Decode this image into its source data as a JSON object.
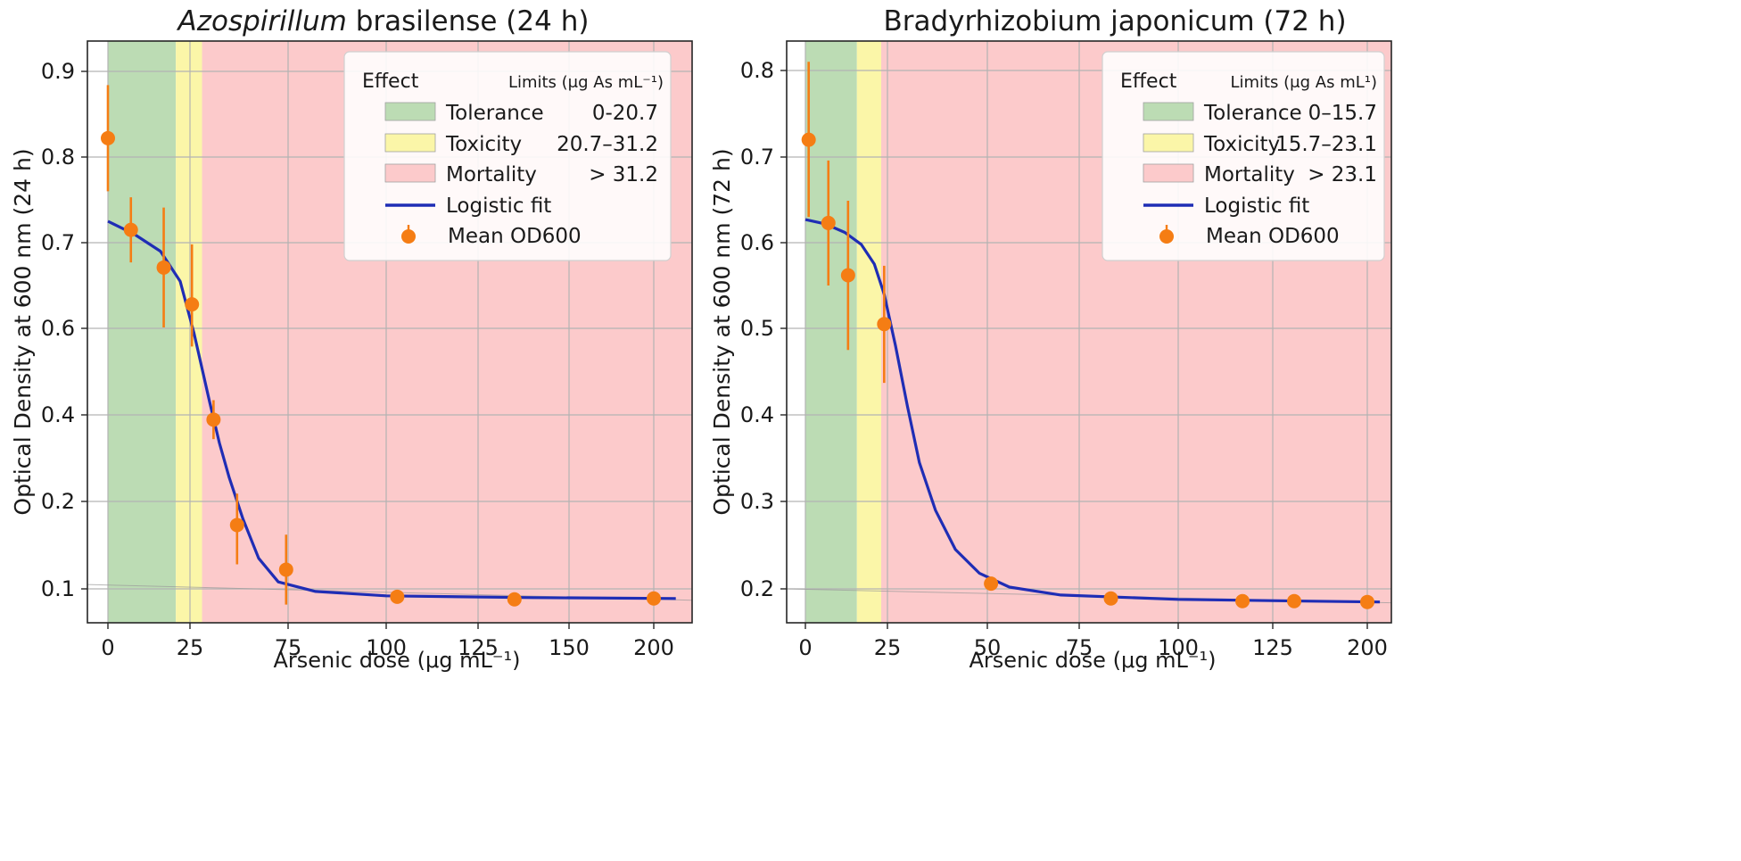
{
  "chart_data": [
    {
      "type": "line",
      "title_parts": {
        "italic": "Azospirillum",
        "rest": " brasilense (24 h)"
      },
      "ylabel": "Optical Density at 600 nm (24 h)",
      "xlabel": "Arsenic dose (μg mL⁻¹)",
      "x_ticks": [
        0,
        25,
        75,
        100,
        125,
        150,
        200
      ],
      "x_tick_labels": [
        "0",
        "25",
        "75",
        "100",
        "125",
        "150",
        "200"
      ],
      "y_ticks": [
        0.1,
        0.2,
        0.4,
        0.6,
        0.7,
        0.8,
        0.9
      ],
      "y_tick_labels": [
        "0.1",
        "0.2",
        "0.4",
        "0.6",
        "0.7",
        "0.8",
        "0.9"
      ],
      "ylim": [
        0.06,
        0.94
      ],
      "grid": true,
      "legend": {
        "placement": "top-right",
        "header_effect": "Effect",
        "header_limits": "Limits (μg As mL⁻¹)",
        "entries": [
          {
            "label": "Tolerance",
            "limits": "0-20.7",
            "color": "#bcdcb4"
          },
          {
            "label": "Toxicity",
            "limits": "20.7–31.2",
            "color": "#fbf6a8"
          },
          {
            "label": "Mortality",
            "limits": "> 31.2",
            "color": "#fccacb"
          },
          {
            "label": "Logistic fit",
            "color": "#1f2db5"
          },
          {
            "label": "Mean OD600",
            "color": "#f57d14"
          }
        ]
      },
      "regions": [
        {
          "effect": "Tolerance",
          "from": 0,
          "to": 20.7,
          "color": "#bcdcb4"
        },
        {
          "effect": "Toxicity",
          "from": 20.7,
          "to": 31.2,
          "color": "#fbf6a8"
        },
        {
          "effect": "Mortality",
          "from": 31.2,
          "to": 214,
          "color": "#fccacb"
        }
      ],
      "series": [
        {
          "name": "Mean OD600",
          "points": [
            {
              "x": 0,
              "y": 0.822,
              "err": 0.062
            },
            {
              "x": 7,
              "y": 0.715,
              "err": 0.038
            },
            {
              "x": 17,
              "y": 0.671,
              "err": 0.07
            },
            {
              "x": 26,
              "y": 0.628,
              "err": 0.07
            },
            {
              "x": 37,
              "y": 0.389,
              "err": 0.045
            },
            {
              "x": 49,
              "y": 0.173,
              "err": 0.045
            },
            {
              "x": 74,
              "y": 0.122,
              "err": 0.04
            },
            {
              "x": 103,
              "y": 0.091,
              "err": 0
            },
            {
              "x": 135,
              "y": 0.088,
              "err": 0
            },
            {
              "x": 200,
              "y": 0.089,
              "err": 0
            }
          ]
        },
        {
          "name": "Logistic fit",
          "curve_points": [
            [
              0,
              0.725
            ],
            [
              8,
              0.71
            ],
            [
              16,
              0.69
            ],
            [
              22,
              0.655
            ],
            [
              27,
              0.59
            ],
            [
              31,
              0.51
            ],
            [
              35,
              0.43
            ],
            [
              40,
              0.335
            ],
            [
              45,
              0.255
            ],
            [
              52,
              0.18
            ],
            [
              60,
              0.135
            ],
            [
              70,
              0.108
            ],
            [
              82,
              0.097
            ],
            [
              100,
              0.092
            ],
            [
              140,
              0.09
            ],
            [
              213,
              0.089
            ]
          ]
        }
      ]
    },
    {
      "type": "line",
      "title_parts": {
        "italic": "",
        "rest": "Bradyrhizobium japonicum (72 h)"
      },
      "ylabel": "Optical Density at 600 nm (72 h)",
      "xlabel": "Arsenic dose (μg mL⁻¹)",
      "x_ticks": [
        0,
        25,
        50,
        75,
        100,
        125,
        200
      ],
      "x_tick_labels": [
        "0",
        "25",
        "50",
        "75",
        "100",
        "125",
        "200"
      ],
      "y_ticks": [
        0.2,
        0.3,
        0.4,
        0.5,
        0.6,
        0.7,
        0.8
      ],
      "y_tick_labels": [
        "0.2",
        "0.3",
        "0.4",
        "0.5",
        "0.6",
        "0.7",
        "0.8"
      ],
      "ylim": [
        0.16,
        0.84
      ],
      "grid": true,
      "legend": {
        "placement": "top-right",
        "header_effect": "Effect",
        "header_limits": "Limits (μg As mL¹)",
        "entries": [
          {
            "label": "Tolerance",
            "limits": "0–15.7",
            "color": "#bcdcb4"
          },
          {
            "label": "Toxicity",
            "limits": "15.7–23.1",
            "color": "#fbf6a8"
          },
          {
            "label": "Mortality",
            "limits": "> 23.1",
            "color": "#fccacb"
          },
          {
            "label": "Logistic fit",
            "color": "#1f2db5"
          },
          {
            "label": "Mean OD600",
            "color": "#f57d14"
          }
        ]
      },
      "regions": [
        {
          "effect": "Tolerance",
          "from": 0,
          "to": 15.7,
          "color": "#bcdcb4"
        },
        {
          "effect": "Toxicity",
          "from": 15.7,
          "to": 23.1,
          "color": "#fbf6a8"
        },
        {
          "effect": "Mortality",
          "from": 23.1,
          "to": 210,
          "color": "#fccacb"
        }
      ],
      "series": [
        {
          "name": "Mean OD600",
          "points": [
            {
              "x": 1,
              "y": 0.72,
              "err": 0.09
            },
            {
              "x": 7,
              "y": 0.623,
              "err": 0.073
            },
            {
              "x": 13,
              "y": 0.562,
              "err": 0.087
            },
            {
              "x": 24,
              "y": 0.505,
              "err": 0.068
            },
            {
              "x": 51,
              "y": 0.206,
              "err": 0
            },
            {
              "x": 83,
              "y": 0.189,
              "err": 0
            },
            {
              "x": 117,
              "y": 0.186,
              "err": 0
            },
            {
              "x": 142,
              "y": 0.186,
              "err": 0
            },
            {
              "x": 200,
              "y": 0.185,
              "err": 0
            }
          ]
        },
        {
          "name": "Logistic fit",
          "curve_points": [
            [
              0,
              0.627
            ],
            [
              6,
              0.622
            ],
            [
              12,
              0.612
            ],
            [
              17,
              0.598
            ],
            [
              21,
              0.575
            ],
            [
              24,
              0.54
            ],
            [
              27,
              0.48
            ],
            [
              30,
              0.41
            ],
            [
              33,
              0.345
            ],
            [
              37,
              0.29
            ],
            [
              42,
              0.245
            ],
            [
              48,
              0.218
            ],
            [
              56,
              0.202
            ],
            [
              70,
              0.193
            ],
            [
              100,
              0.188
            ],
            [
              150,
              0.186
            ],
            [
              210,
              0.185
            ]
          ]
        }
      ]
    }
  ]
}
